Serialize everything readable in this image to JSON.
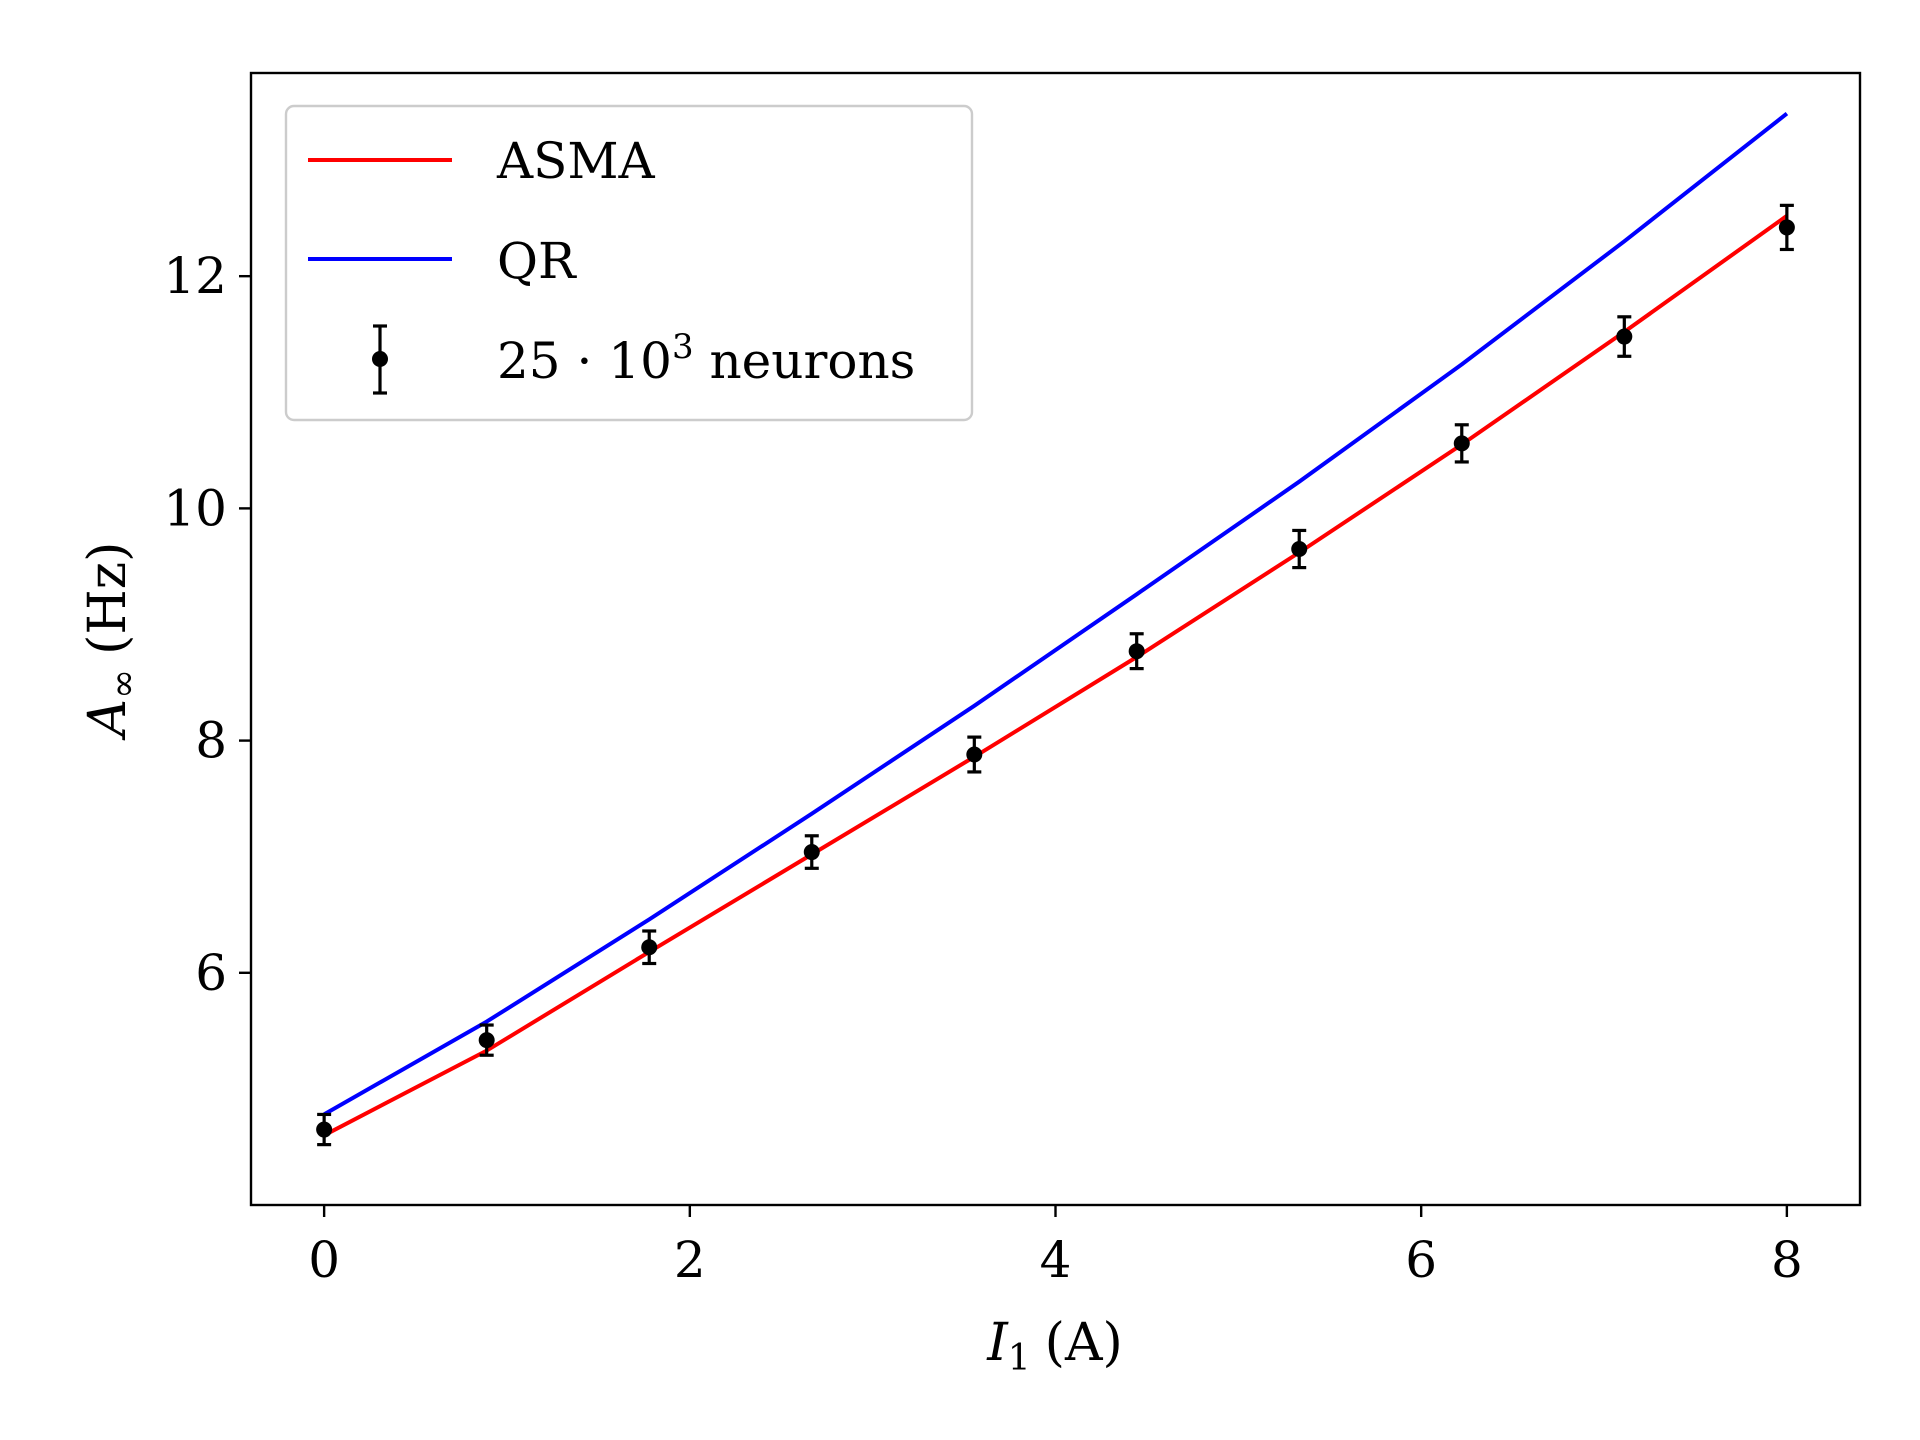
{
  "chart_data": {
    "type": "line",
    "title": "",
    "xlabel": {
      "symbol": "I",
      "sub": "1",
      "unit": "(A)"
    },
    "ylabel": {
      "symbol": "A",
      "sub": "∞",
      "unit": "(Hz)"
    },
    "xlim": [
      -0.4,
      8.4
    ],
    "ylim": [
      4.0,
      13.75
    ],
    "xticks": [
      0,
      2,
      4,
      6,
      8
    ],
    "yticks": [
      6,
      8,
      10,
      12
    ],
    "grid": false,
    "legend_position": "top-left",
    "series": [
      {
        "name": "ASMA",
        "kind": "line",
        "color": "#ff0000",
        "x": [
          0,
          0.889,
          1.778,
          2.667,
          3.556,
          4.444,
          5.333,
          6.222,
          7.111,
          8.0
        ],
        "y": [
          4.6,
          5.33,
          6.18,
          7.02,
          7.86,
          8.72,
          9.62,
          10.55,
          11.52,
          12.52
        ]
      },
      {
        "name": "QR",
        "kind": "line",
        "color": "#0000ff",
        "x": [
          0,
          0.889,
          1.778,
          2.667,
          3.556,
          4.444,
          5.333,
          6.222,
          7.111,
          8.0
        ],
        "y": [
          4.78,
          5.58,
          6.46,
          7.37,
          8.3,
          9.26,
          10.23,
          11.24,
          12.3,
          13.4
        ]
      },
      {
        "name": "25 · 10³ neurons",
        "legend": {
          "base": "25 · 10",
          "sup": "3",
          "rest": " neurons"
        },
        "kind": "errorbar",
        "color": "#000000",
        "x": [
          0,
          0.889,
          1.778,
          2.667,
          3.556,
          4.444,
          5.333,
          6.222,
          7.111,
          8.0
        ],
        "y": [
          4.65,
          5.42,
          6.22,
          7.04,
          7.88,
          8.77,
          9.65,
          10.56,
          11.48,
          12.42
        ],
        "yerr": [
          0.13,
          0.13,
          0.14,
          0.14,
          0.15,
          0.15,
          0.16,
          0.16,
          0.17,
          0.19
        ]
      }
    ]
  }
}
